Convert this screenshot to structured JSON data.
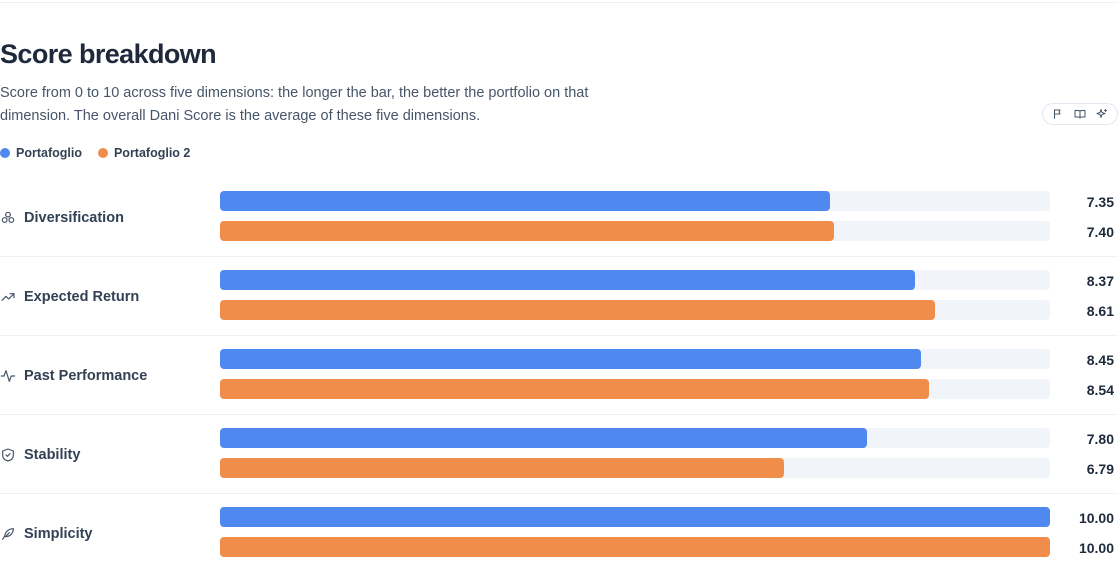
{
  "title": "Score breakdown",
  "subtitle": "Score from 0 to 10 across five dimensions: the longer the bar, the better the portfolio on that dimension. The overall Dani Score is the average of these five dimensions.",
  "toolbar": {
    "icons": [
      "flag-icon",
      "book-open-icon",
      "sparkles-icon"
    ]
  },
  "colors": {
    "series1": "#4f88ee",
    "series2": "#f08d4b",
    "track": "#f1f4f9"
  },
  "chart_data": {
    "type": "bar",
    "orientation": "horizontal",
    "xlim": [
      0,
      10
    ],
    "legend": "top-left",
    "categories": [
      "Diversification",
      "Expected Return",
      "Past Performance",
      "Stability",
      "Simplicity"
    ],
    "category_icons": [
      "cluster-icon",
      "trending-up-icon",
      "activity-icon",
      "shield-check-icon",
      "feather-icon"
    ],
    "series": [
      {
        "name": "Portafoglio",
        "values": [
          7.35,
          8.37,
          8.45,
          7.8,
          10.0
        ]
      },
      {
        "name": "Portafoglio 2",
        "values": [
          7.4,
          8.61,
          8.54,
          6.79,
          10.0
        ]
      }
    ],
    "value_labels": [
      [
        "7.35",
        "8.37",
        "8.45",
        "7.80",
        "10.00"
      ],
      [
        "7.40",
        "8.61",
        "8.54",
        "6.79",
        "10.00"
      ]
    ]
  }
}
